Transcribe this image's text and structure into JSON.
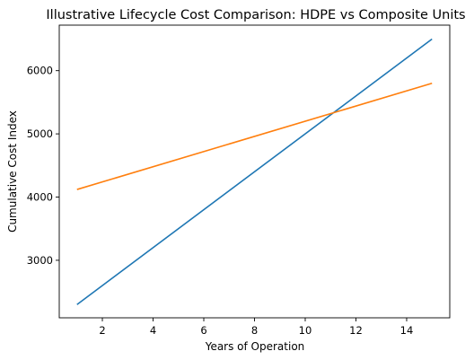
{
  "chart_data": {
    "type": "line",
    "title": "Illustrative Lifecycle Cost Comparison: HDPE vs Composite Units",
    "xlabel": "Years of Operation",
    "ylabel": "Cumulative Cost Index",
    "x": [
      1,
      15
    ],
    "series": [
      {
        "values": [
          2300,
          6500
        ],
        "color": "#1f77b4"
      },
      {
        "values": [
          4120,
          5800
        ],
        "color": "#ff7f0e"
      }
    ],
    "xlim": [
      0.3,
      15.7
    ],
    "ylim": [
      2090,
      6720
    ],
    "xticks": [
      2,
      4,
      6,
      8,
      10,
      12,
      14
    ],
    "yticks": [
      3000,
      4000,
      5000,
      6000
    ],
    "grid": false,
    "legend": "none"
  }
}
